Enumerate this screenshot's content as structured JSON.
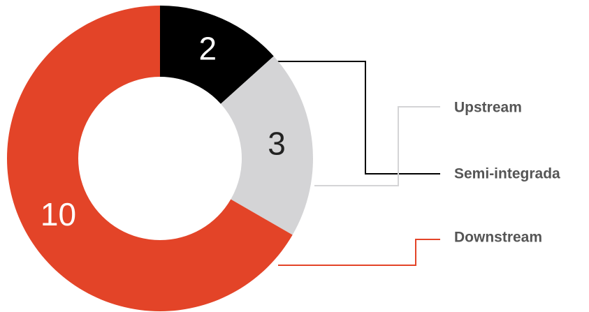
{
  "chart_data": {
    "type": "pie",
    "donut": true,
    "categories": [
      "Semi-integrada",
      "Upstream",
      "Downstream"
    ],
    "values": [
      2,
      3,
      10
    ],
    "colors": [
      "#000000",
      "#d4d4d6",
      "#e34428"
    ]
  }
}
